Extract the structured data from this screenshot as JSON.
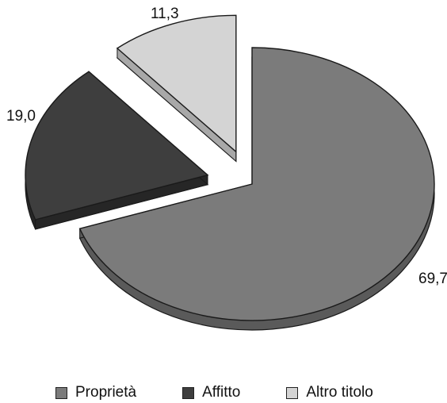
{
  "chart_data": {
    "type": "pie",
    "title": "",
    "slices": [
      {
        "label": "Proprietà",
        "value": 69.7,
        "value_label": "69,7",
        "color": "#7b7b7b",
        "side_color": "#5a5a5a",
        "exploded": false
      },
      {
        "label": "Affitto",
        "value": 19.0,
        "value_label": "19,0",
        "color": "#3e3e3e",
        "side_color": "#262626",
        "exploded": true
      },
      {
        "label": "Altro titolo",
        "value": 11.3,
        "value_label": "11,3",
        "color": "#d4d4d4",
        "side_color": "#a8a8a8",
        "exploded": true
      }
    ],
    "legend": {
      "position": "bottom",
      "entries": [
        "Proprietà",
        "Affitto",
        "Altro titolo"
      ]
    },
    "style": "3d-exploded"
  }
}
